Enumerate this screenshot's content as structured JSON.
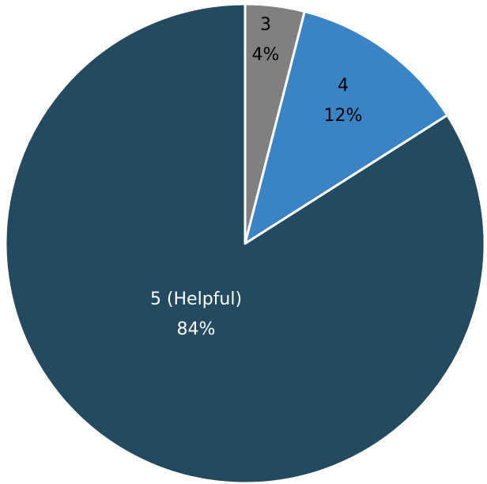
{
  "chart_data": {
    "type": "pie",
    "title": "",
    "start_angle_deg": 0,
    "direction": "clockwise",
    "slices": [
      {
        "label": "3",
        "value": 4,
        "percent_label": "4%",
        "color": "#808080",
        "label_color": "#000000"
      },
      {
        "label": "4",
        "value": 12,
        "percent_label": "12%",
        "color": "#3a84c6",
        "label_color": "#000000"
      },
      {
        "label": "5 (Helpful)",
        "value": 84,
        "percent_label": "84%",
        "color": "#244a5f",
        "label_color": "#ffffff"
      }
    ]
  }
}
